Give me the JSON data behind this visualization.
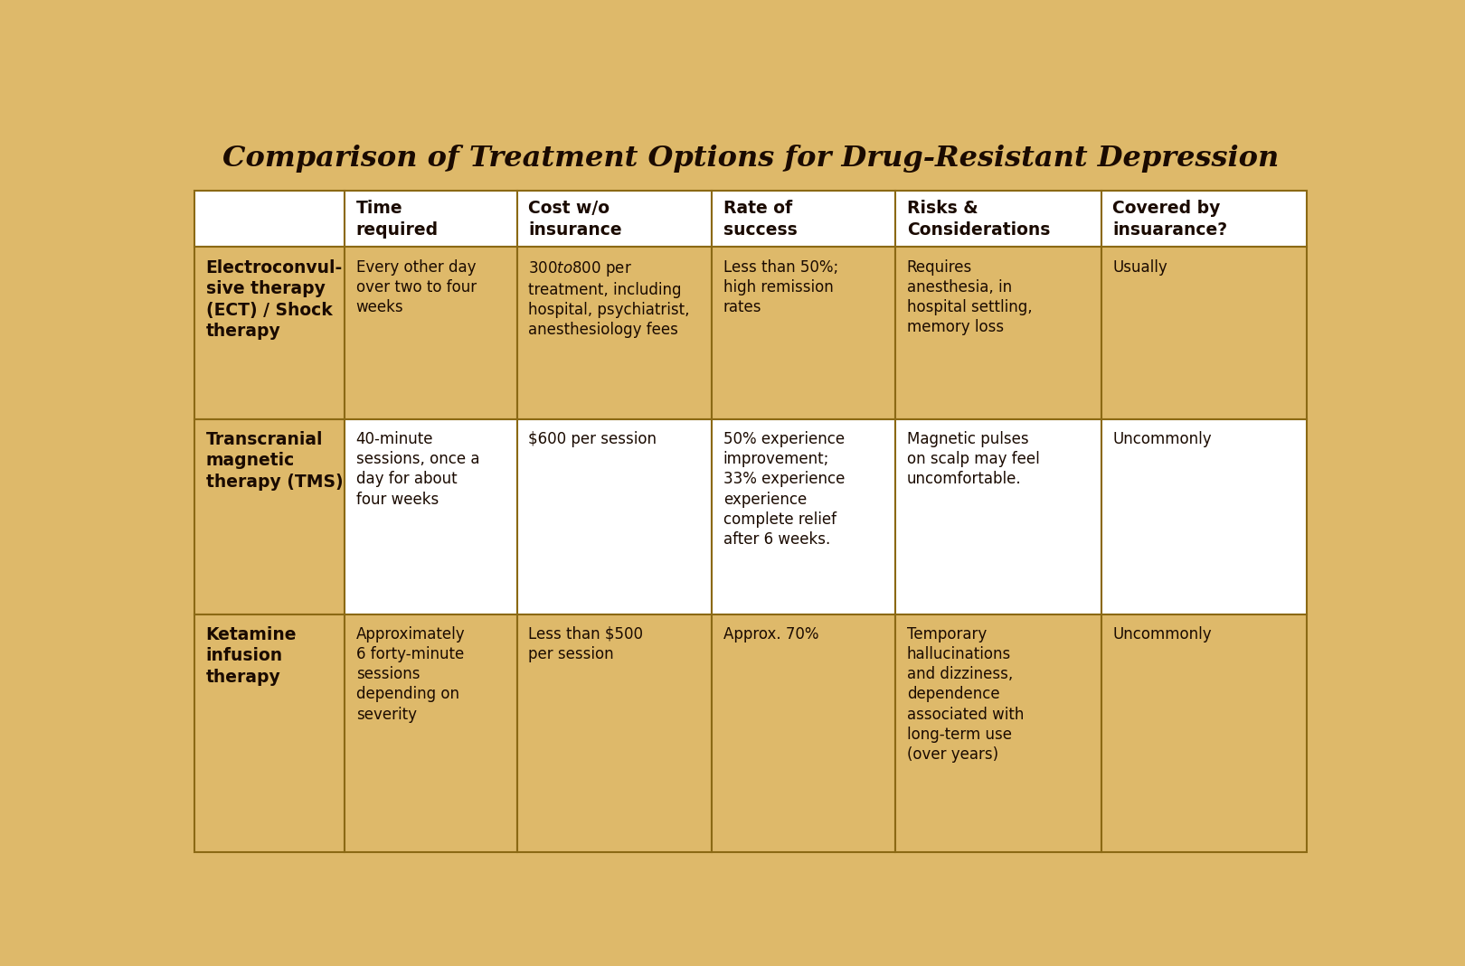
{
  "title": "Comparison of Treatment Options for Drug-Resistant Depression",
  "title_bg": "#DEB96A",
  "title_color": "#1A0A00",
  "background_color": "#DEB96A",
  "cell_bg_tan": "#DEB96A",
  "cell_bg_white": "#FFFFFF",
  "border_color": "#8B6914",
  "text_color": "#1A0A00",
  "col_headers": [
    "Time\nrequired",
    "Cost w/o\ninsurance",
    "Rate of\nsuccess",
    "Risks &\nConsiderations",
    "Covered by\ninsuarance?"
  ],
  "row_labels": [
    "Electroconvul-\nsive therapy\n(ECT) / Shock\ntherapy",
    "Transcranial\nmagnetic\ntherapy (TMS)",
    "Ketamine\ninfusion\ntherapy"
  ],
  "table_data": [
    [
      "Every other day\nover two to four\nweeks",
      "$300 to $800 per\ntreatment, including\nhospital, psychiatrist,\nanesthesiology fees",
      "Less than 50%;\nhigh remission\nrates",
      "Requires\nanesthesia, in\nhospital settling,\nmemory loss",
      "Usually"
    ],
    [
      "40-minute\nsessions, once a\nday for about\nfour weeks",
      "$600 per session",
      "50% experience\nimprovement;\n33% experience\nexperience\ncomplete relief\nafter 6 weeks.",
      "Magnetic pulses\non scalp may feel\nuncomfortable.",
      "Uncommonly"
    ],
    [
      "Approximately\n6 forty-minute\nsessions\ndepending on\nseverity",
      "Less than $500\nper session",
      "Approx. 70%",
      "Temporary\nhallucinations\nand dizziness,\ndependence\nassociated with\nlong-term use\n(over years)",
      "Uncommonly"
    ]
  ],
  "row_bg": [
    "tan",
    "white",
    "tan"
  ],
  "col_props": [
    0.135,
    0.155,
    0.175,
    0.165,
    0.185,
    0.185
  ],
  "row_props": [
    0.085,
    0.26,
    0.295,
    0.36
  ]
}
